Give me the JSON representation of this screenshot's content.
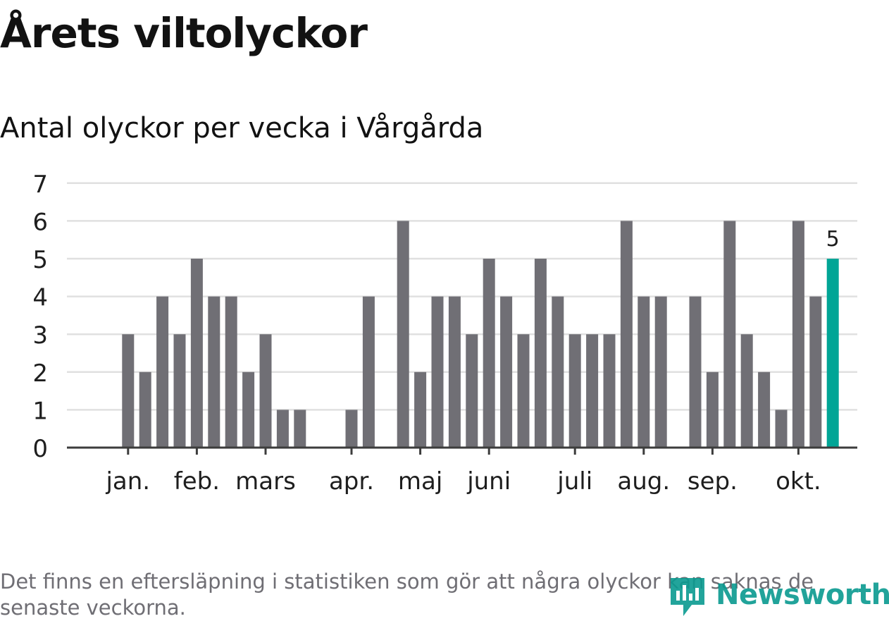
{
  "header": {
    "title": "Årets viltolyckor",
    "subtitle": "Antal olyckor per vecka i Vårgårda"
  },
  "footer": {
    "note": "Det finns en eftersläpning i statistiken som gör att några olyckor kan saknas de senaste veckorna.",
    "logo_text": "Newsworthy"
  },
  "colors": {
    "bar": "#706f75",
    "highlight": "#00a596",
    "grid": "#e0e0e0",
    "axis": "#3c3c3c",
    "text": "#1e1e1e"
  },
  "chart_data": {
    "type": "bar",
    "title": "Antal olyckor per vecka i Vårgårda",
    "xlabel": "",
    "ylabel": "",
    "ylim": [
      0,
      7
    ],
    "yticks": [
      0,
      1,
      2,
      3,
      4,
      5,
      6,
      7
    ],
    "grid": true,
    "weeks": [
      1,
      2,
      3,
      4,
      5,
      6,
      7,
      8,
      9,
      10,
      11,
      12,
      13,
      14,
      15,
      16,
      17,
      18,
      19,
      20,
      21,
      22,
      23,
      24,
      25,
      26,
      27,
      28,
      29,
      30,
      31,
      32,
      33,
      34,
      35,
      36,
      37,
      38,
      39,
      40,
      41,
      42,
      43,
      44
    ],
    "values": [
      0,
      0,
      3,
      2,
      4,
      3,
      5,
      4,
      4,
      2,
      3,
      1,
      1,
      0,
      0,
      1,
      4,
      0,
      6,
      2,
      4,
      4,
      3,
      5,
      4,
      3,
      5,
      4,
      3,
      3,
      3,
      6,
      4,
      4,
      0,
      4,
      2,
      6,
      3,
      2,
      1,
      6,
      4,
      5
    ],
    "highlight_index": 43,
    "highlight_label": "5",
    "month_ticks": [
      {
        "label": "jan.",
        "week": 3
      },
      {
        "label": "feb.",
        "week": 7
      },
      {
        "label": "mars",
        "week": 11
      },
      {
        "label": "apr.",
        "week": 16
      },
      {
        "label": "maj",
        "week": 20
      },
      {
        "label": "juni",
        "week": 24
      },
      {
        "label": "juli",
        "week": 29
      },
      {
        "label": "aug.",
        "week": 33
      },
      {
        "label": "sep.",
        "week": 37
      },
      {
        "label": "okt.",
        "week": 42
      }
    ]
  }
}
